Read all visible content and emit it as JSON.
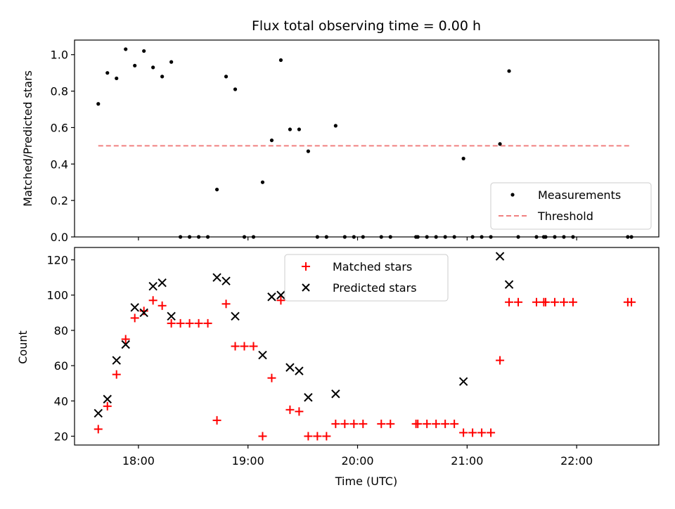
{
  "chart_data": [
    {
      "type": "scatter",
      "title": "Flux total observing time = 0.00 h",
      "xlabel": "",
      "ylabel": "Matched/Predicted stars",
      "xlim": [
        "17:25",
        "22:45"
      ],
      "ylim": [
        0,
        1.08
      ],
      "yticks": [
        0.0,
        0.2,
        0.4,
        0.6,
        0.8,
        1.0
      ],
      "ytick_labels": [
        "0.0",
        "0.2",
        "0.4",
        "0.6",
        "0.8",
        "1.0"
      ],
      "legend": "lower-right",
      "series": [
        {
          "name": "Measurements",
          "marker": "dot",
          "color": "#000000",
          "points": [
            [
              "17:38",
              0.73
            ],
            [
              "17:43",
              0.9
            ],
            [
              "17:48",
              0.87
            ],
            [
              "17:53",
              1.03
            ],
            [
              "17:58",
              0.94
            ],
            [
              "18:03",
              1.02
            ],
            [
              "18:08",
              0.93
            ],
            [
              "18:13",
              0.88
            ],
            [
              "18:18",
              0.96
            ],
            [
              "18:23",
              0.0
            ],
            [
              "18:28",
              0.0
            ],
            [
              "18:33",
              0.0
            ],
            [
              "18:38",
              0.0
            ],
            [
              "18:43",
              0.26
            ],
            [
              "18:48",
              0.88
            ],
            [
              "18:53",
              0.81
            ],
            [
              "18:58",
              0.0
            ],
            [
              "19:03",
              0.0
            ],
            [
              "19:08",
              0.3
            ],
            [
              "19:13",
              0.53
            ],
            [
              "19:18",
              0.97
            ],
            [
              "19:23",
              0.59
            ],
            [
              "19:28",
              0.59
            ],
            [
              "19:33",
              0.47
            ],
            [
              "19:38",
              0.0
            ],
            [
              "19:43",
              0.0
            ],
            [
              "19:48",
              0.61
            ],
            [
              "19:53",
              0.0
            ],
            [
              "19:58",
              0.0
            ],
            [
              "20:03",
              0.0
            ],
            [
              "20:13",
              0.0
            ],
            [
              "20:18",
              0.0
            ],
            [
              "20:32",
              0.0
            ],
            [
              "20:33",
              0.0
            ],
            [
              "20:38",
              0.0
            ],
            [
              "20:43",
              0.0
            ],
            [
              "20:48",
              0.0
            ],
            [
              "20:53",
              0.0
            ],
            [
              "20:58",
              0.43
            ],
            [
              "21:03",
              0.0
            ],
            [
              "21:08",
              0.0
            ],
            [
              "21:13",
              0.0
            ],
            [
              "21:18",
              0.51
            ],
            [
              "21:23",
              0.91
            ],
            [
              "21:28",
              0.0
            ],
            [
              "21:38",
              0.0
            ],
            [
              "21:42",
              0.0
            ],
            [
              "21:43",
              0.0
            ],
            [
              "21:48",
              0.0
            ],
            [
              "21:53",
              0.0
            ],
            [
              "21:58",
              0.0
            ],
            [
              "22:28",
              0.0
            ],
            [
              "22:30",
              0.0
            ]
          ]
        },
        {
          "name": "Threshold",
          "marker": "dashed-line",
          "color": "#f08080",
          "points": [
            [
              "17:38",
              0.5
            ],
            [
              "22:30",
              0.5
            ]
          ]
        }
      ]
    },
    {
      "type": "scatter",
      "title": "",
      "xlabel": "Time (UTC)",
      "ylabel": "Count",
      "xlim": [
        "17:25",
        "22:45"
      ],
      "ylim": [
        15,
        127
      ],
      "xticks": [
        "18:00",
        "19:00",
        "20:00",
        "21:00",
        "22:00"
      ],
      "yticks": [
        20,
        40,
        60,
        80,
        100,
        120
      ],
      "legend": "top-center",
      "series": [
        {
          "name": "Matched stars",
          "marker": "plus",
          "color": "#ff0000",
          "points": [
            [
              "17:38",
              24
            ],
            [
              "17:43",
              37
            ],
            [
              "17:48",
              55
            ],
            [
              "17:53",
              75
            ],
            [
              "17:58",
              87
            ],
            [
              "18:03",
              91
            ],
            [
              "18:08",
              97
            ],
            [
              "18:13",
              94
            ],
            [
              "18:18",
              84
            ],
            [
              "18:23",
              84
            ],
            [
              "18:28",
              84
            ],
            [
              "18:33",
              84
            ],
            [
              "18:38",
              84
            ],
            [
              "18:43",
              29
            ],
            [
              "18:48",
              95
            ],
            [
              "18:53",
              71
            ],
            [
              "18:58",
              71
            ],
            [
              "19:03",
              71
            ],
            [
              "19:08",
              20
            ],
            [
              "19:13",
              53
            ],
            [
              "19:18",
              97
            ],
            [
              "19:23",
              35
            ],
            [
              "19:28",
              34
            ],
            [
              "19:33",
              20
            ],
            [
              "19:38",
              20
            ],
            [
              "19:43",
              20
            ],
            [
              "19:48",
              27
            ],
            [
              "19:53",
              27
            ],
            [
              "19:58",
              27
            ],
            [
              "20:03",
              27
            ],
            [
              "20:13",
              27
            ],
            [
              "20:18",
              27
            ],
            [
              "20:32",
              27
            ],
            [
              "20:33",
              27
            ],
            [
              "20:38",
              27
            ],
            [
              "20:43",
              27
            ],
            [
              "20:48",
              27
            ],
            [
              "20:53",
              27
            ],
            [
              "20:58",
              22
            ],
            [
              "21:03",
              22
            ],
            [
              "21:08",
              22
            ],
            [
              "21:13",
              22
            ],
            [
              "21:18",
              63
            ],
            [
              "21:23",
              96
            ],
            [
              "21:28",
              96
            ],
            [
              "21:38",
              96
            ],
            [
              "21:42",
              96
            ],
            [
              "21:43",
              96
            ],
            [
              "21:48",
              96
            ],
            [
              "21:53",
              96
            ],
            [
              "21:58",
              96
            ],
            [
              "22:28",
              96
            ],
            [
              "22:30",
              96
            ]
          ]
        },
        {
          "name": "Predicted stars",
          "marker": "x",
          "color": "#000000",
          "points": [
            [
              "17:38",
              33
            ],
            [
              "17:43",
              41
            ],
            [
              "17:48",
              63
            ],
            [
              "17:53",
              72
            ],
            [
              "17:58",
              93
            ],
            [
              "18:03",
              90
            ],
            [
              "18:08",
              105
            ],
            [
              "18:13",
              107
            ],
            [
              "18:18",
              88
            ],
            [
              "18:43",
              110
            ],
            [
              "18:48",
              108
            ],
            [
              "18:53",
              88
            ],
            [
              "19:08",
              66
            ],
            [
              "19:13",
              99
            ],
            [
              "19:18",
              100
            ],
            [
              "19:23",
              59
            ],
            [
              "19:28",
              57
            ],
            [
              "19:33",
              42
            ],
            [
              "19:48",
              44
            ],
            [
              "20:58",
              51
            ],
            [
              "21:18",
              122
            ],
            [
              "21:23",
              106
            ]
          ]
        }
      ]
    }
  ]
}
